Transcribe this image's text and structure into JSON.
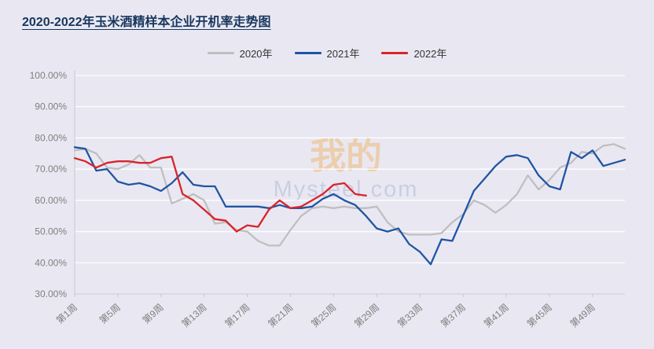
{
  "page": {
    "background": "#E9E8F2",
    "title": "2020-2022年玉米酒精样本企业开机率走势图",
    "title_color": "#17365D"
  },
  "watermark": {
    "text_cn": "我的",
    "text_en": "Mysteel.com"
  },
  "chart_data": {
    "type": "line",
    "title": "2020-2022年玉米酒精样本企业开机率走势图",
    "legend_position": "top-center",
    "grid": "horizontal",
    "ylabel": "",
    "xlabel": "",
    "ylim": [
      30,
      100
    ],
    "y_ticks": [
      100,
      90,
      80,
      70,
      60,
      50,
      40,
      30
    ],
    "y_tick_labels": [
      "100.00%",
      "90.00%",
      "80.00%",
      "70.00%",
      "60.00%",
      "50.00%",
      "40.00%",
      "30.00%"
    ],
    "x_weeks_total": 52,
    "x_tick_weeks": [
      1,
      5,
      9,
      13,
      17,
      21,
      25,
      29,
      33,
      37,
      41,
      45,
      49
    ],
    "x_tick_labels": [
      "第1周",
      "第5周",
      "第9周",
      "第13周",
      "第17周",
      "第21周",
      "第25周",
      "第29周",
      "第33周",
      "第37周",
      "第41周",
      "第45周",
      "第49周"
    ],
    "series": [
      {
        "name": "2020年",
        "color": "#BFBFBF",
        "start_week": 1,
        "values": [
          76,
          76.5,
          75,
          70.5,
          70,
          71.5,
          74.5,
          70.5,
          70.5,
          59,
          60.5,
          62,
          60,
          52.5,
          53,
          50.5,
          50,
          47,
          45.5,
          45.5,
          50.5,
          55,
          57.5,
          58,
          57.5,
          58,
          57.5,
          57.5,
          58,
          53,
          50,
          49,
          49,
          49,
          49.5,
          53,
          55.5,
          60,
          58.5,
          56,
          58.5,
          62,
          68,
          63.5,
          66.5,
          70.5,
          72,
          75.5,
          75,
          77.5,
          78,
          76.5
        ]
      },
      {
        "name": "2021年",
        "color": "#2155A3",
        "start_week": 1,
        "values": [
          77,
          76.5,
          69.5,
          70,
          66,
          65,
          65.5,
          64.5,
          63,
          65.5,
          69,
          65,
          64.5,
          64.5,
          58,
          58,
          58,
          58,
          57.5,
          58.5,
          57.5,
          57.5,
          58,
          60.5,
          62,
          60,
          58.5,
          55,
          51,
          50,
          51,
          46,
          43.5,
          39.5,
          47.5,
          47,
          55,
          63,
          67,
          71,
          74,
          74.5,
          73.5,
          68,
          64.5,
          63.5,
          75.5,
          73.5,
          76,
          71,
          72,
          73
        ]
      },
      {
        "name": "2022年",
        "color": "#D9242B",
        "start_week": 1,
        "values": [
          73.5,
          72.5,
          70.5,
          72,
          72.5,
          72.5,
          72,
          72,
          73.5,
          74,
          62,
          60,
          57,
          54,
          53.5,
          50,
          52,
          51.5,
          57,
          60,
          57.5,
          58,
          60,
          62,
          65,
          65.5,
          62,
          61.5
        ]
      }
    ]
  }
}
